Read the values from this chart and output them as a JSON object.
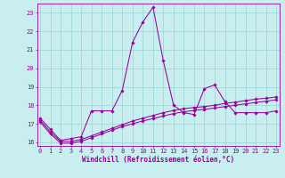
{
  "title": "",
  "xlabel": "Windchill (Refroidissement éolien,°C)",
  "bg_color": "#c8eef0",
  "grid_color": "#a0d8d8",
  "line_color": "#990099",
  "line1_y": [
    17.3,
    16.7,
    16.1,
    16.2,
    16.3,
    17.7,
    17.7,
    17.7,
    18.8,
    21.4,
    22.5,
    23.3,
    20.4,
    18.0,
    17.6,
    17.5,
    18.9,
    19.1,
    18.2,
    17.6,
    17.6,
    17.6,
    17.6,
    17.7
  ],
  "line2_y": [
    17.2,
    16.55,
    16.05,
    16.05,
    16.15,
    16.35,
    16.55,
    16.75,
    16.95,
    17.15,
    17.3,
    17.45,
    17.6,
    17.72,
    17.82,
    17.88,
    17.93,
    18.0,
    18.1,
    18.17,
    18.25,
    18.33,
    18.38,
    18.45
  ],
  "line3_y": [
    17.1,
    16.45,
    15.95,
    15.95,
    16.05,
    16.25,
    16.45,
    16.65,
    16.85,
    17.0,
    17.15,
    17.28,
    17.42,
    17.55,
    17.65,
    17.72,
    17.78,
    17.85,
    17.93,
    18.0,
    18.08,
    18.15,
    18.22,
    18.3
  ],
  "ylim": [
    15.8,
    23.5
  ],
  "xlim": [
    -0.3,
    23.3
  ],
  "yticks": [
    16,
    17,
    18,
    19,
    20,
    21,
    22,
    23
  ],
  "xticks": [
    0,
    1,
    2,
    3,
    4,
    5,
    6,
    7,
    8,
    9,
    10,
    11,
    12,
    13,
    14,
    15,
    16,
    17,
    18,
    19,
    20,
    21,
    22,
    23
  ],
  "xtick_labels": [
    "0",
    "1",
    "2",
    "3",
    "4",
    "5",
    "6",
    "7",
    "8",
    "9",
    "10",
    "11",
    "12",
    "13",
    "14",
    "15",
    "16",
    "17",
    "18",
    "19",
    "20",
    "21",
    "22",
    "23"
  ],
  "fontsize_tick": 5.0,
  "fontsize_xlabel": 5.5,
  "marker": "D",
  "markersize": 1.8,
  "linewidth": 0.75
}
